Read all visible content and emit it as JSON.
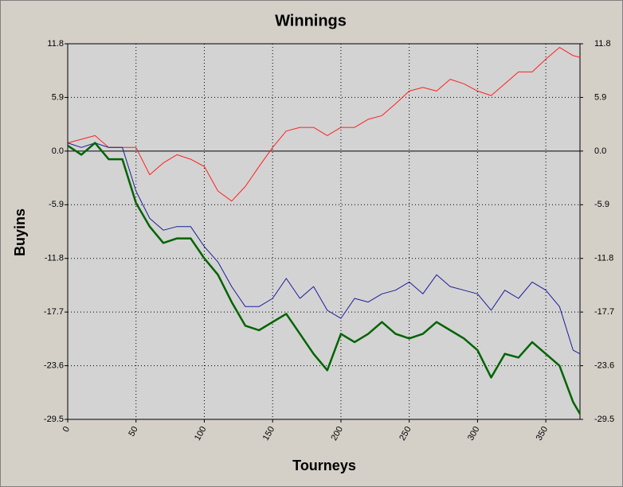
{
  "chart_data": {
    "type": "line",
    "title": "Winnings",
    "x_label": "Tourneys",
    "y_label": "Buyins",
    "x": [
      0,
      10,
      20,
      30,
      40,
      50,
      60,
      70,
      80,
      90,
      100,
      110,
      120,
      130,
      140,
      150,
      160,
      170,
      180,
      190,
      200,
      210,
      220,
      230,
      240,
      250,
      260,
      270,
      280,
      290,
      300,
      310,
      320,
      330,
      340,
      350,
      360,
      370,
      375
    ],
    "series": [
      {
        "color": "#ff2020",
        "width": 1,
        "values": [
          0.9,
          1.3,
          1.7,
          0.4,
          0.4,
          0.4,
          -2.6,
          -1.3,
          -0.4,
          -0.9,
          -1.7,
          -4.4,
          -5.5,
          -3.9,
          -1.7,
          0.4,
          2.2,
          2.6,
          2.6,
          1.7,
          2.6,
          2.6,
          3.5,
          3.9,
          5.2,
          6.6,
          7.0,
          6.6,
          7.9,
          7.4,
          6.6,
          6.1,
          7.4,
          8.7,
          8.7,
          10.1,
          11.4,
          10.5,
          10.3
        ]
      },
      {
        "color": "#1c1c9c",
        "width": 1,
        "values": [
          0.9,
          0.4,
          0.9,
          0.4,
          0.4,
          -4.4,
          -7.4,
          -8.7,
          -8.3,
          -8.3,
          -10.5,
          -12.2,
          -14.9,
          -17.1,
          -17.1,
          -16.2,
          -14.0,
          -16.2,
          -14.9,
          -17.5,
          -18.4,
          -16.2,
          -16.6,
          -15.7,
          -15.3,
          -14.4,
          -15.7,
          -13.6,
          -14.9,
          -15.3,
          -15.7,
          -17.5,
          -15.3,
          -16.2,
          -14.4,
          -15.3,
          -17.1,
          -21.9,
          -22.3
        ]
      },
      {
        "color": "#006400",
        "width": 2.5,
        "values": [
          0.6,
          -0.4,
          0.9,
          -0.9,
          -0.9,
          -5.7,
          -8.3,
          -10.1,
          -9.6,
          -9.6,
          -11.8,
          -13.6,
          -16.6,
          -19.2,
          -19.7,
          -18.8,
          -17.9,
          -20.1,
          -22.3,
          -24.1,
          -20.1,
          -21.0,
          -20.1,
          -18.8,
          -20.1,
          -20.6,
          -20.1,
          -18.8,
          -19.7,
          -20.6,
          -21.9,
          -24.9,
          -22.3,
          -22.7,
          -21.0,
          -22.3,
          -23.6,
          -27.6,
          -28.9
        ]
      }
    ],
    "xlim": [
      0,
      375
    ],
    "xticks": [
      0,
      50,
      100,
      150,
      200,
      250,
      300,
      350
    ],
    "ylim": [
      -29.5,
      11.8
    ],
    "yticks": [
      11.8,
      5.9,
      {
        "value": 0,
        "label": "0.0"
      },
      -5.9,
      -11.8,
      -17.7,
      -23.6,
      -29.5
    ],
    "y2lim": [
      -29.5,
      11.8
    ],
    "y2ticks": [
      11.8,
      5.9,
      {
        "value": 0,
        "label": "0.0"
      },
      -5.9,
      -11.8,
      -17.7,
      -23.6,
      -29.5
    ],
    "grid": true
  }
}
